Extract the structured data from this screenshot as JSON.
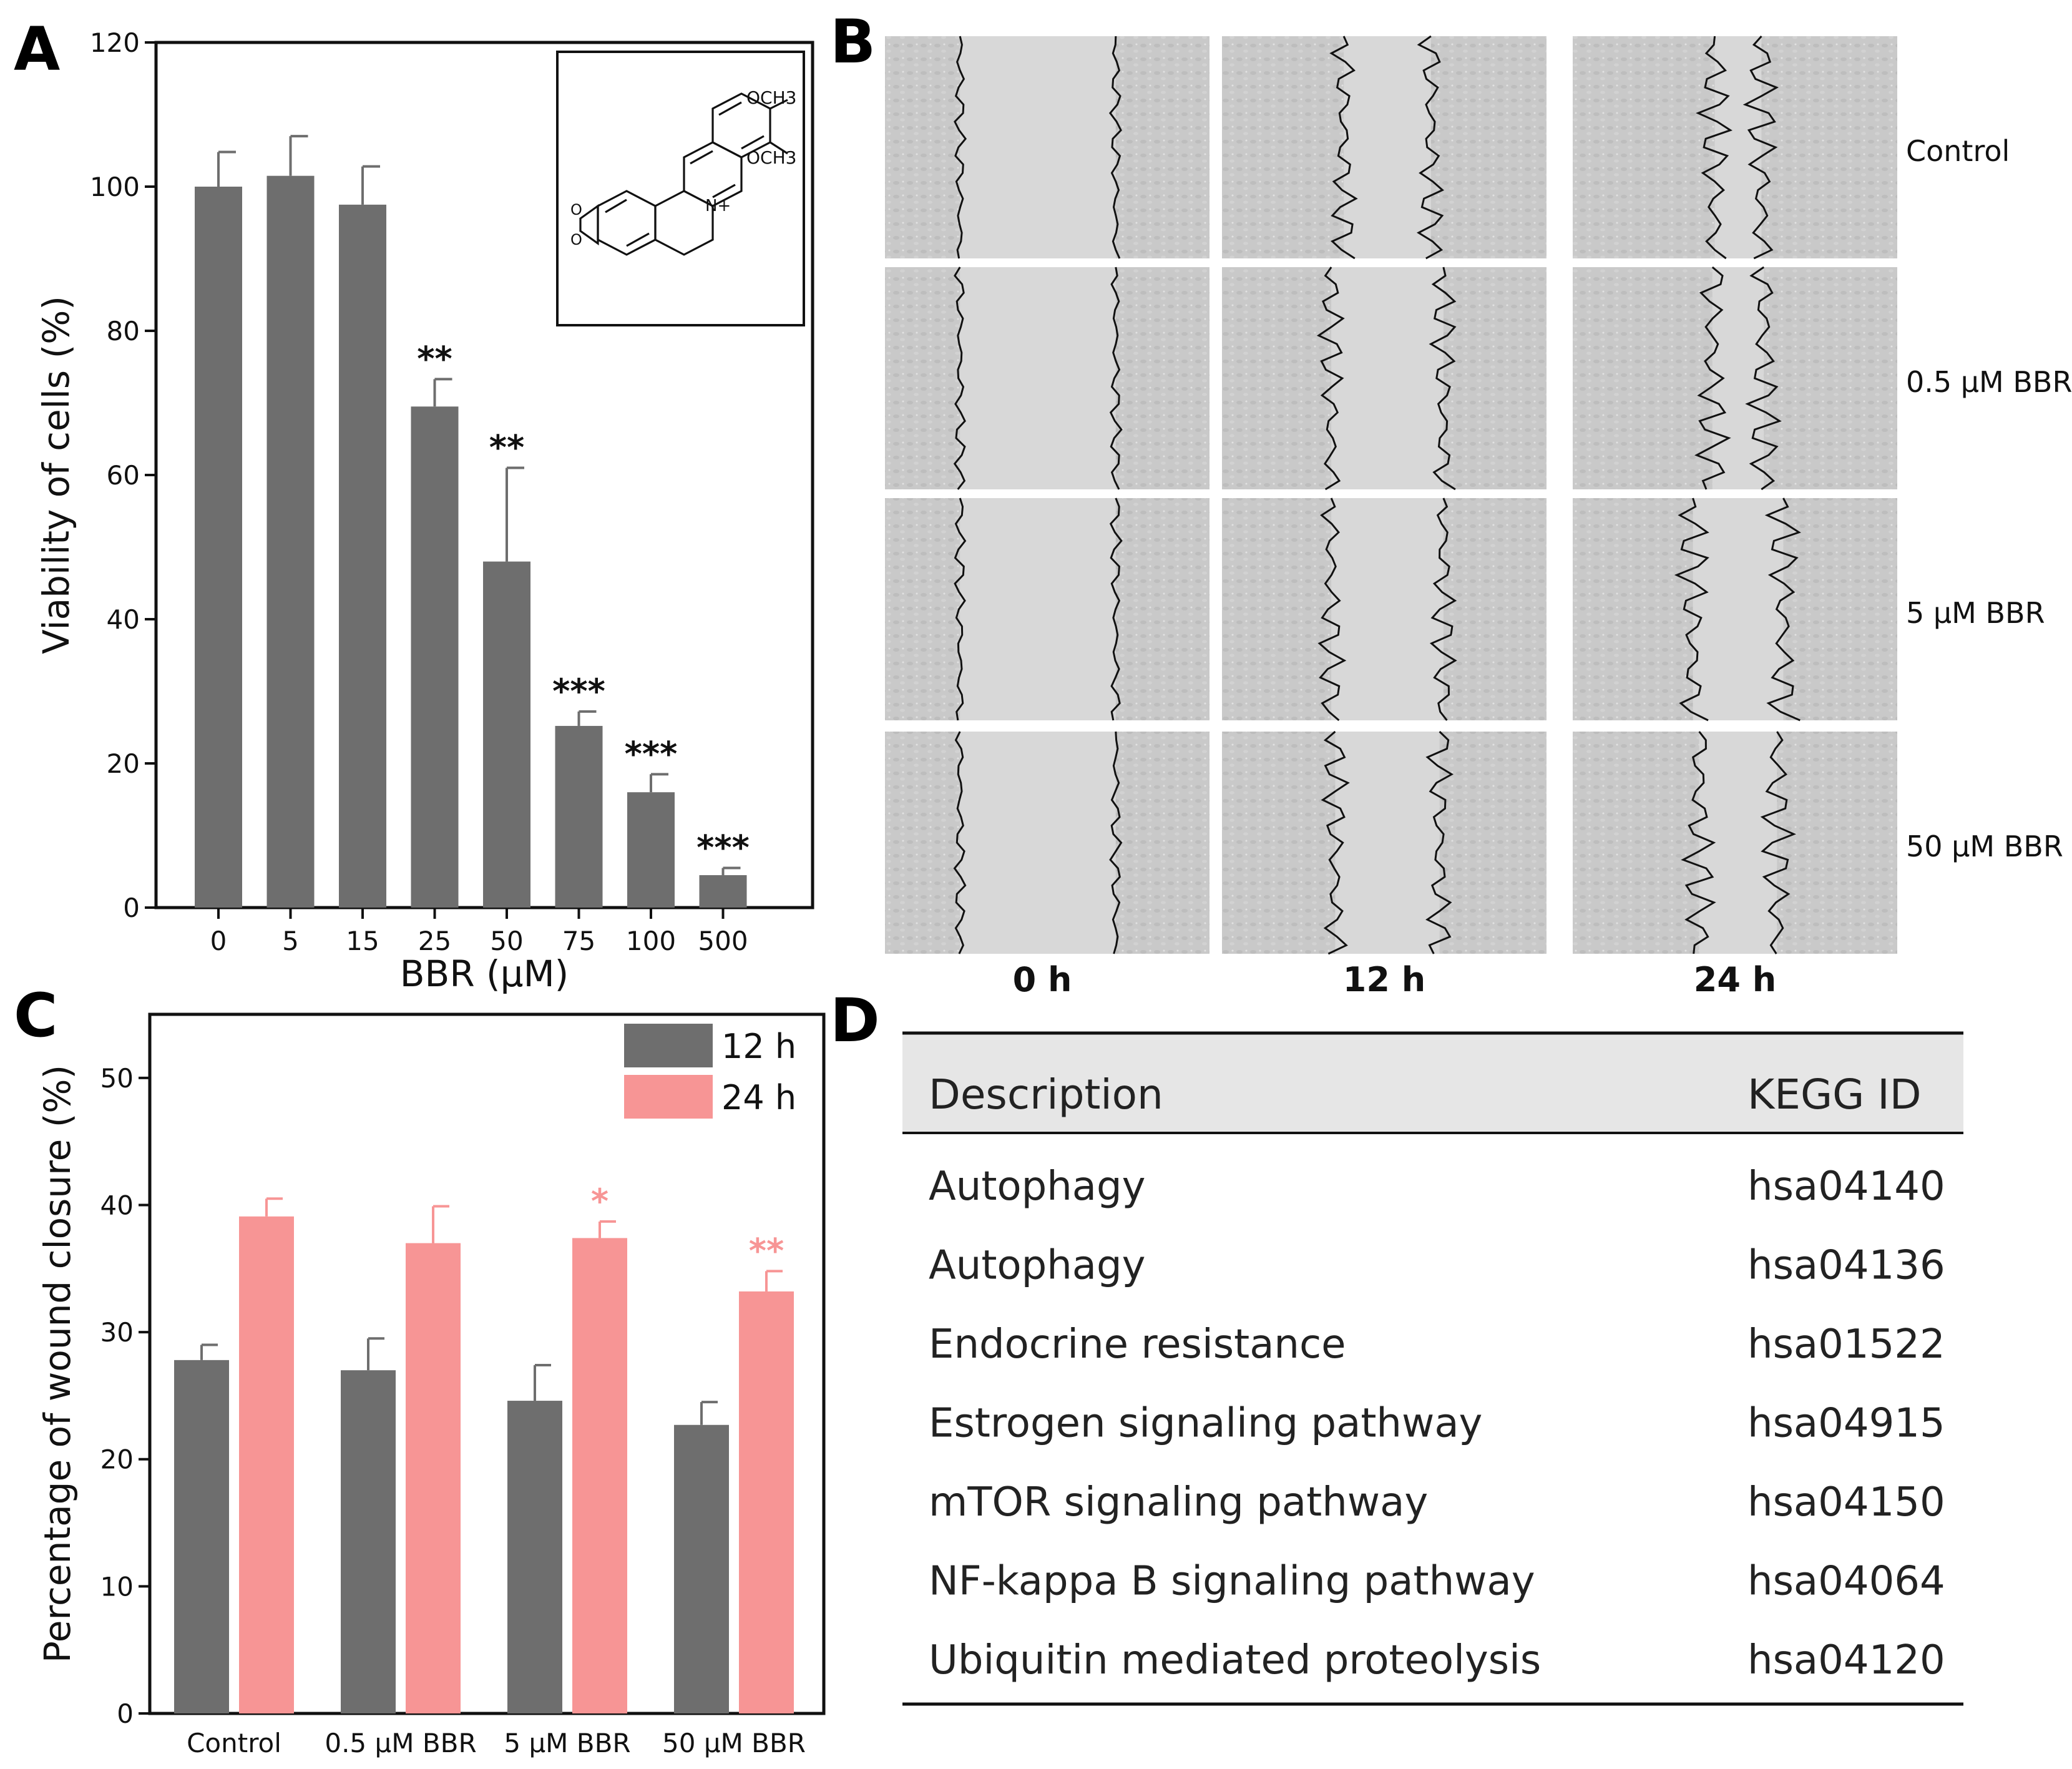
{
  "panel_labels": [
    "A",
    "B",
    "C",
    "D"
  ],
  "chart_data": [
    {
      "panel": "A",
      "type": "bar",
      "categories": [
        "0",
        "5",
        "15",
        "25",
        "50",
        "75",
        "100",
        "500"
      ],
      "values": [
        100,
        101.5,
        97.5,
        69.5,
        48,
        25.2,
        16,
        4.5
      ],
      "errors": [
        4.8,
        5.5,
        5.3,
        3.8,
        13,
        2,
        2.5,
        1
      ],
      "significance": [
        "",
        "",
        "",
        "**",
        "**",
        "***",
        "***",
        "***"
      ],
      "xlabel": "BBR (μM)",
      "ylabel": "Viability of cells (%)",
      "ylim": [
        0,
        120
      ],
      "yticks": [
        0,
        20,
        40,
        60,
        80,
        100,
        120
      ],
      "bar_color": "#6e6e6e",
      "inset": {
        "type": "chemical-structure",
        "substituents": [
          "OCH3",
          "OCH3"
        ],
        "charge_label": "N+"
      }
    },
    {
      "panel": "C",
      "type": "bar",
      "categories": [
        "Control",
        "0.5 μM BBR",
        "5 μM BBR",
        "50 μM BBR"
      ],
      "series": [
        {
          "name": "12 h",
          "values": [
            27.8,
            27,
            24.6,
            22.7
          ],
          "errors": [
            1.2,
            2.5,
            2.8,
            1.8
          ],
          "significance": [
            "",
            "",
            "",
            ""
          ],
          "color": "#6e6e6e"
        },
        {
          "name": "24 h",
          "values": [
            39.1,
            37,
            37.4,
            33.2
          ],
          "errors": [
            1.4,
            2.9,
            1.3,
            1.6
          ],
          "significance": [
            "",
            "",
            "*",
            "**"
          ],
          "color": "#f79595"
        }
      ],
      "xlabel": "",
      "ylabel": "Percentage of wound closure (%)",
      "ylim": [
        0,
        55
      ],
      "yticks": [
        0,
        10,
        20,
        30,
        40,
        50
      ],
      "legend_position": "top-right"
    }
  ],
  "micrographs": {
    "row_labels": [
      "Control",
      "0.5 μM BBR",
      "5 μM BBR",
      "50 μM BBR"
    ],
    "col_labels": [
      "0 h",
      "12 h",
      "24 h"
    ],
    "gap_fraction": [
      [
        1.0,
        0.56,
        0.3
      ],
      [
        1.0,
        0.72,
        0.33
      ],
      [
        1.0,
        0.72,
        0.58
      ],
      [
        1.0,
        0.67,
        0.5
      ]
    ]
  },
  "table": {
    "headers": [
      "Description",
      "KEGG ID"
    ],
    "rows": [
      [
        "Autophagy",
        "hsa04140"
      ],
      [
        "Autophagy",
        "hsa04136"
      ],
      [
        "Endocrine resistance",
        "hsa01522"
      ],
      [
        "Estrogen signaling pathway",
        "hsa04915"
      ],
      [
        "mTOR signaling pathway",
        "hsa04150"
      ],
      [
        "NF-kappa B signaling pathway",
        "hsa04064"
      ],
      [
        "Ubiquitin mediated proteolysis",
        "hsa04120"
      ]
    ]
  }
}
